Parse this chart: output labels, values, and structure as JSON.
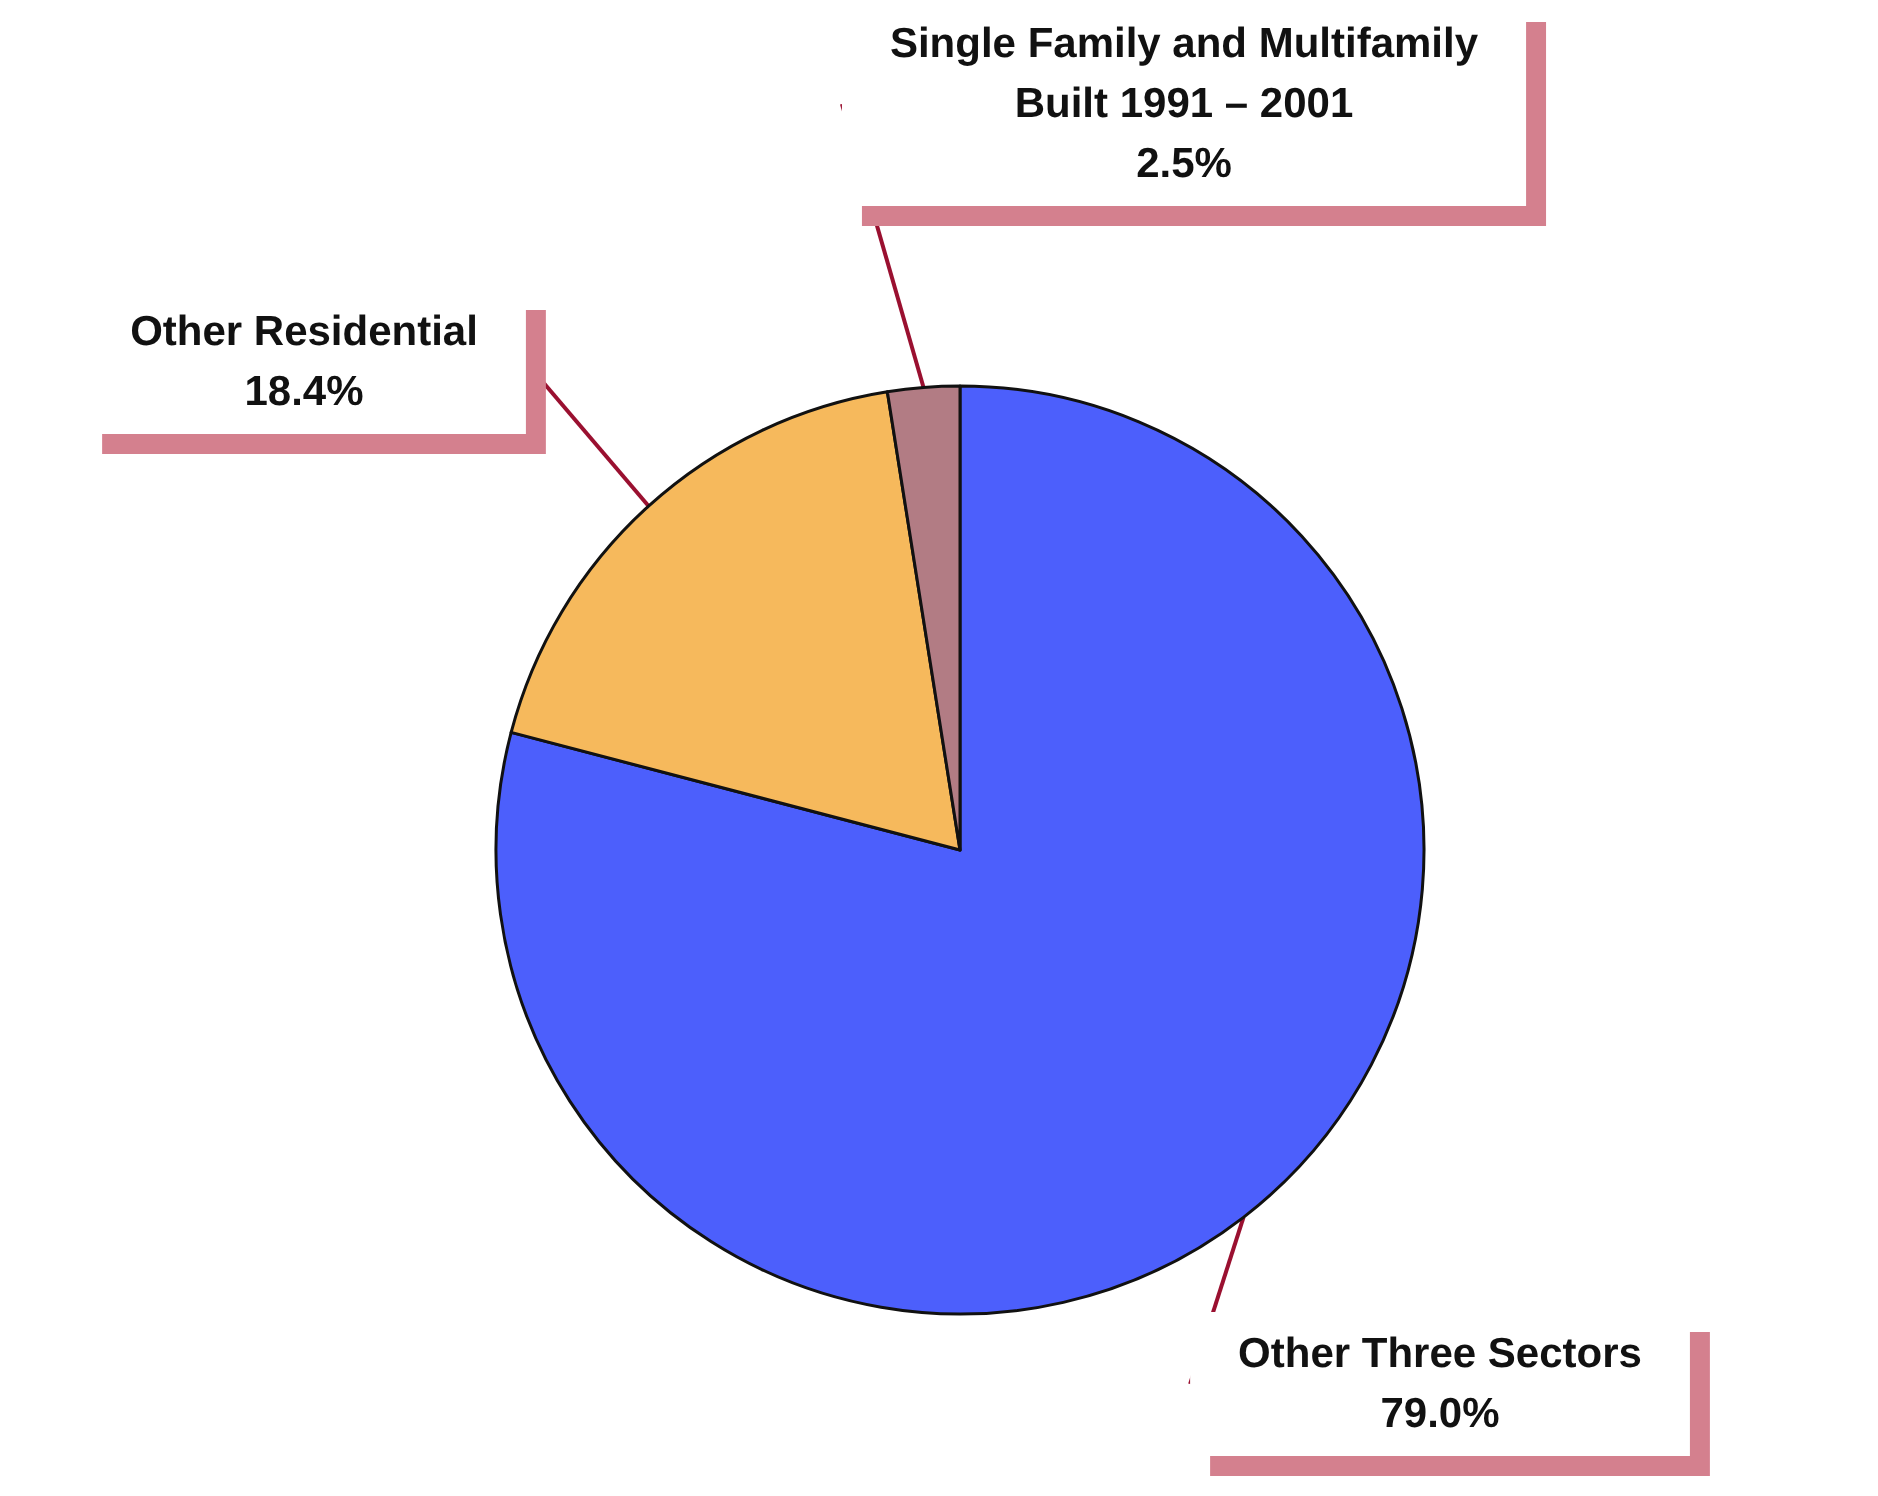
{
  "chart_data": {
    "type": "pie",
    "categories": [
      "Other Three Sectors",
      "Other Residential",
      "Single Family and Multifamily\nBuilt 1991 – 2001"
    ],
    "values": [
      79.0,
      18.4,
      2.5
    ],
    "value_labels": [
      "79.0%",
      "18.4%",
      "2.5%"
    ],
    "colors": [
      "#4c5ffc",
      "#f6b95c",
      "#b27c84"
    ],
    "legend": false
  }
}
